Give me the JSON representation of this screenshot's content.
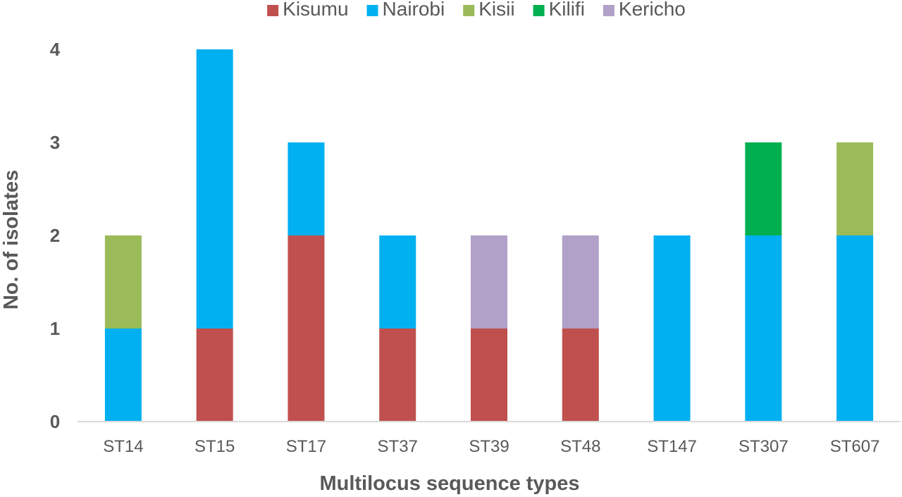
{
  "chart_data": {
    "type": "bar",
    "stacked": true,
    "title": "",
    "xlabel": "Multilocus sequence types",
    "ylabel": "No. of isolates",
    "ylim": [
      0,
      4
    ],
    "yticks": [
      0,
      1,
      2,
      3,
      4
    ],
    "grid": false,
    "legend_position": "top",
    "categories": [
      "ST14",
      "ST15",
      "ST17",
      "ST37",
      "ST39",
      "ST48",
      "ST147",
      "ST307",
      "ST607"
    ],
    "series": [
      {
        "name": "Kisumu",
        "color": "#c0504d",
        "values": [
          0,
          1,
          2,
          1,
          1,
          1,
          0,
          0,
          0
        ]
      },
      {
        "name": "Nairobi",
        "color": "#00b0f0",
        "values": [
          1,
          3,
          1,
          1,
          0,
          0,
          2,
          2,
          2
        ]
      },
      {
        "name": "Kisii",
        "color": "#9bbb59",
        "values": [
          1,
          0,
          0,
          0,
          0,
          0,
          0,
          0,
          1
        ]
      },
      {
        "name": "Kilifi",
        "color": "#00b050",
        "values": [
          0,
          0,
          0,
          0,
          0,
          0,
          0,
          1,
          0
        ]
      },
      {
        "name": "Kericho",
        "color": "#b1a0c7",
        "values": [
          0,
          0,
          0,
          0,
          1,
          1,
          0,
          0,
          0
        ]
      }
    ]
  }
}
